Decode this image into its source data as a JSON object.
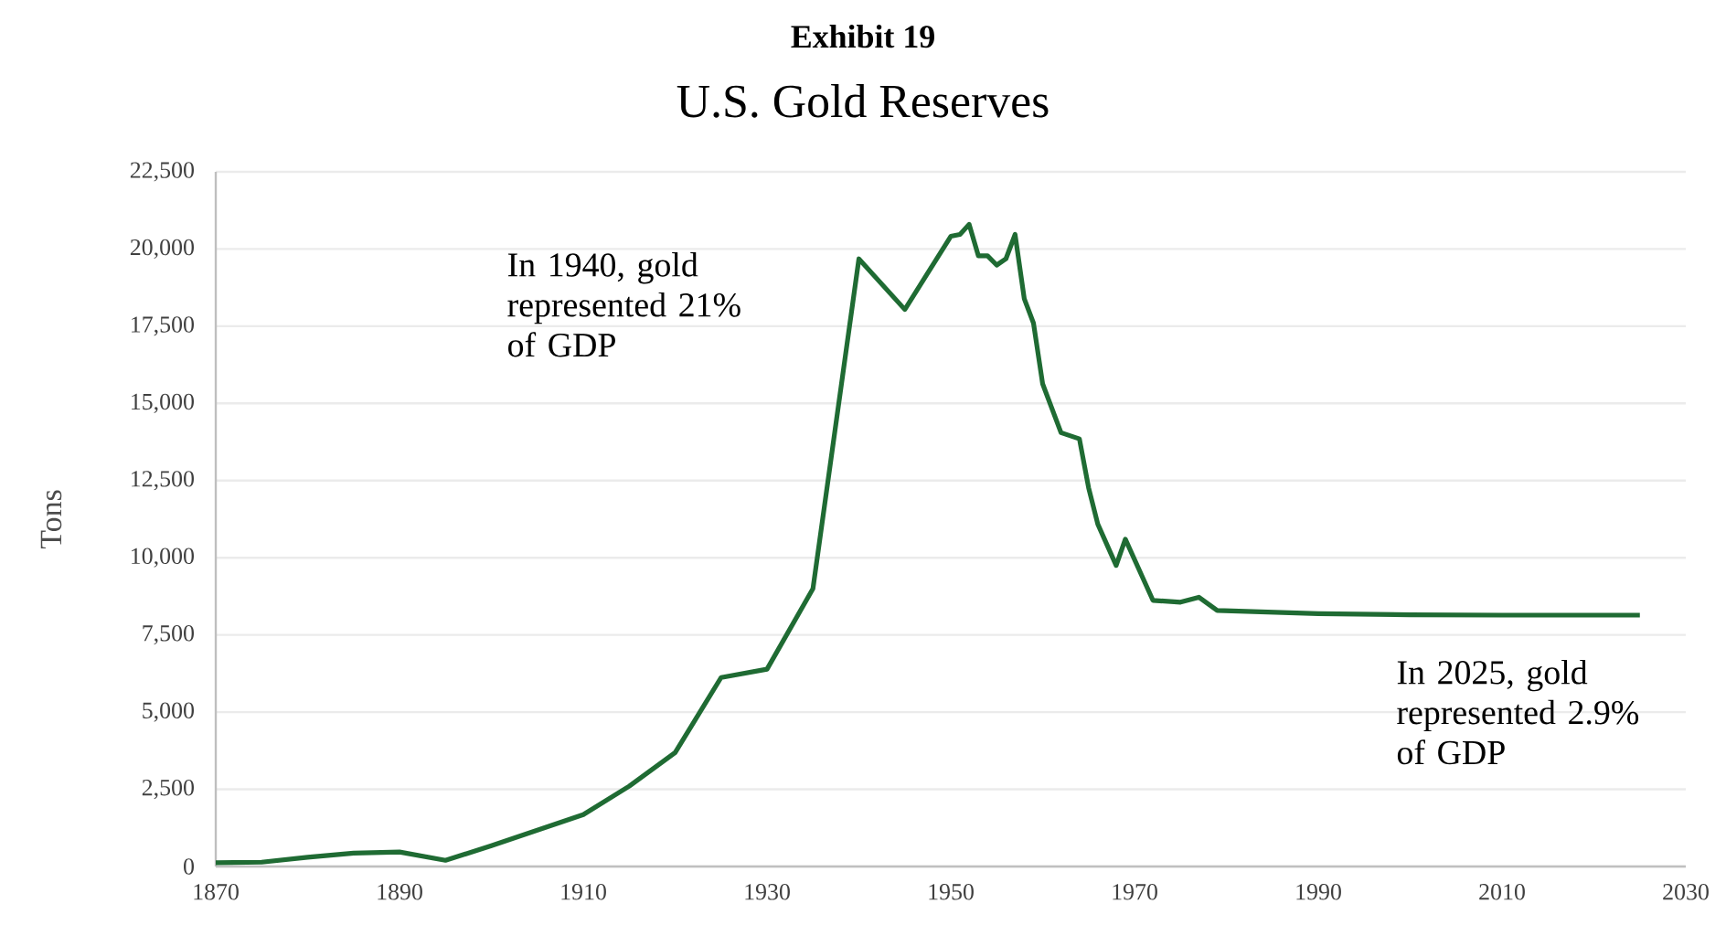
{
  "chart_data": {
    "type": "line",
    "title": "Exhibit 19",
    "subtitle": "U.S. Gold Reserves",
    "ylabel": "Tons",
    "annotations": [
      "In 1940, gold represented 21% of GDP",
      "In 2025, gold represented 2.9% of GDP"
    ],
    "series": [
      {
        "color": "#1f6b33",
        "x": [
          1870,
          1875,
          1880,
          1885,
          1890,
          1895,
          1900,
          1910,
          1915,
          1920,
          1925,
          1930,
          1935,
          1940,
          1945,
          1950,
          1951,
          1952,
          1953,
          1954,
          1955,
          1956,
          1957,
          1958,
          1959,
          1960,
          1962,
          1964,
          1965,
          1966,
          1968,
          1969,
          1972,
          1975,
          1977,
          1979,
          1990,
          2000,
          2010,
          2025
        ],
        "values": [
          120,
          140,
          300,
          430,
          470,
          200,
          670,
          1680,
          2600,
          3690,
          6120,
          6390,
          9000,
          19680,
          18040,
          20410,
          20470,
          20800,
          19780,
          19780,
          19480,
          19680,
          20470,
          18390,
          17600,
          15630,
          14050,
          13850,
          12270,
          11090,
          9750,
          10600,
          8620,
          8560,
          8720,
          8290,
          8190,
          8150,
          8140,
          8140
        ]
      }
    ],
    "xlim": [
      1870,
      2030
    ],
    "xticks": [
      1870,
      1890,
      1910,
      1930,
      1950,
      1970,
      1990,
      2010,
      2030
    ],
    "ylim": [
      0,
      22500
    ],
    "yticks": [
      0,
      {
        "value": 2500,
        "label": "2,500"
      },
      {
        "value": 5000,
        "label": "5,000"
      },
      {
        "value": 7500,
        "label": "7,500"
      },
      {
        "value": 10000,
        "label": "10,000"
      },
      {
        "value": 12500,
        "label": "12,500"
      },
      {
        "value": 15000,
        "label": "15,000"
      },
      {
        "value": 17500,
        "label": "17,500"
      },
      {
        "value": 20000,
        "label": "20,000"
      },
      {
        "value": 22500,
        "label": "22,500"
      }
    ],
    "grid": "y",
    "marker": "none",
    "line_style": "solid"
  }
}
